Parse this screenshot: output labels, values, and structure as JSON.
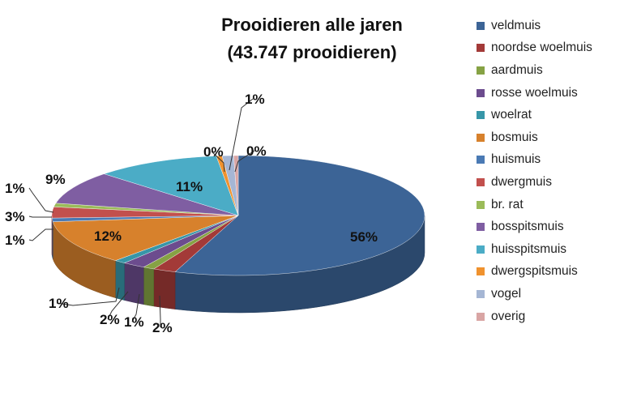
{
  "chart_data": {
    "type": "pie",
    "title": "Prooidieren alle jaren",
    "subtitle": "(43.747 prooidieren)",
    "legend_position": "right",
    "slices": [
      {
        "name": "veldmuis",
        "value": 56,
        "label": "56%",
        "color": "#3c6496"
      },
      {
        "name": "noordse woelmuis",
        "value": 2,
        "label": "2%",
        "color": "#a33a38"
      },
      {
        "name": "aardmuis",
        "value": 1,
        "label": "1%",
        "color": "#86a244"
      },
      {
        "name": "rosse woelmuis",
        "value": 2,
        "label": "2%",
        "color": "#6c4c8e"
      },
      {
        "name": "woelrat",
        "value": 1,
        "label": "1%",
        "color": "#3796a8"
      },
      {
        "name": "bosmuis",
        "value": 12,
        "label": "12%",
        "color": "#d7812c"
      },
      {
        "name": "huismuis",
        "value": 1,
        "label": "1%",
        "color": "#4a7ab4"
      },
      {
        "name": "dwergmuis",
        "value": 3,
        "label": "3%",
        "color": "#c2504d"
      },
      {
        "name": "br. rat",
        "value": 1,
        "label": "1%",
        "color": "#9bbb59"
      },
      {
        "name": "bosspitsmuis",
        "value": 9,
        "label": "9%",
        "color": "#7f5ea2"
      },
      {
        "name": "huisspitsmuis",
        "value": 11,
        "label": "11%",
        "color": "#4bacc6"
      },
      {
        "name": "dwergspitsmuis",
        "value": 0.5,
        "label": "0%",
        "color": "#f0922e"
      },
      {
        "name": "vogel",
        "value": 1,
        "label": "1%",
        "color": "#a5b6d4"
      },
      {
        "name": "overig",
        "value": 0.4,
        "label": "0%",
        "color": "#d9a5a4"
      }
    ]
  }
}
